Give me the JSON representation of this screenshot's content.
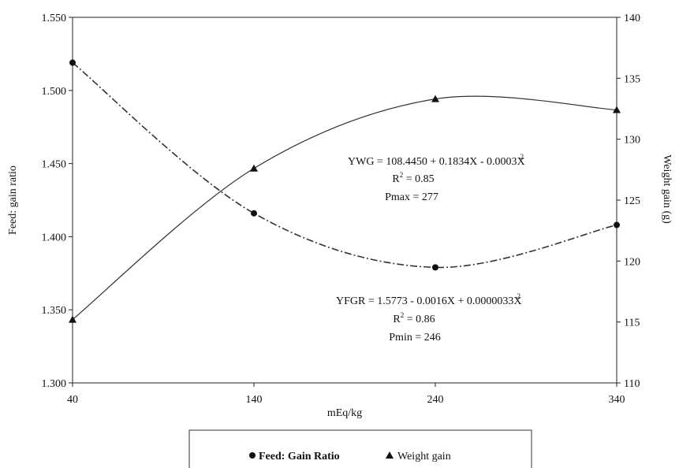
{
  "chart_data": {
    "type": "line",
    "x": [
      40,
      140,
      240,
      340
    ],
    "xlim": [
      40,
      340
    ],
    "xticks": [
      "40",
      "140",
      "240",
      "340"
    ],
    "xlabel": "mEq/kg",
    "ylabel_left": "Feed: gain ratio",
    "ylabel_right": "Weight gain (g)",
    "ylim_left": [
      1.3,
      1.55
    ],
    "ylim_right": [
      110,
      140
    ],
    "yticks_left": [
      "1.300",
      "1.350",
      "1.400",
      "1.450",
      "1.500",
      "1.550"
    ],
    "yticks_right": [
      "110",
      "115",
      "120",
      "125",
      "130",
      "135",
      "140"
    ],
    "grid": false,
    "legend_placement": "bottom",
    "series": [
      {
        "name": "Feed: Gain Ratio",
        "axis": "left",
        "marker": "circle",
        "line_style": "dash-dot",
        "values": [
          1.519,
          1.416,
          1.379,
          1.408
        ]
      },
      {
        "name": "Weight gain",
        "axis": "right",
        "marker": "triangle",
        "line_style": "solid",
        "values": [
          115.2,
          127.6,
          133.3,
          132.4
        ]
      }
    ],
    "annotations": {
      "wg_equation": "YWG = 108.4450  + 0.1834X - 0.0003X",
      "wg_exponent": "2",
      "wg_r2_label": "R",
      "wg_r2_value": " = 0.85",
      "wg_pmax": "Pmax = 277",
      "fgr_equation": "YFGR = 1.5773  - 0.0016X + 0.0000033X",
      "fgr_exponent": "2",
      "fgr_r2_label": "R",
      "fgr_r2_value": " = 0.86",
      "fgr_pmin": "Pmin = 246",
      "r2_superscript": "2"
    }
  }
}
